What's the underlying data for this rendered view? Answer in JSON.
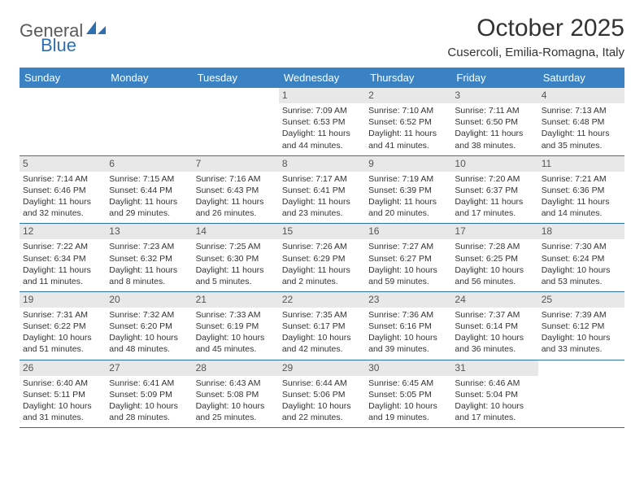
{
  "brand": {
    "text1": "General",
    "text2": "Blue"
  },
  "title": "October 2025",
  "location": "Cusercoli, Emilia-Romagna, Italy",
  "colors": {
    "header_bg": "#3a82c4",
    "header_text": "#ffffff",
    "row_border": "#2f6fb0",
    "daynum_bg": "#e8e8e8",
    "text": "#333333",
    "brand_grey": "#5a5a5a",
    "brand_blue": "#2f6fb0"
  },
  "day_headers": [
    "Sunday",
    "Monday",
    "Tuesday",
    "Wednesday",
    "Thursday",
    "Friday",
    "Saturday"
  ],
  "weeks": [
    [
      null,
      null,
      null,
      {
        "n": "1",
        "sr": "Sunrise: 7:09 AM",
        "ss": "Sunset: 6:53 PM",
        "d1": "Daylight: 11 hours",
        "d2": "and 44 minutes."
      },
      {
        "n": "2",
        "sr": "Sunrise: 7:10 AM",
        "ss": "Sunset: 6:52 PM",
        "d1": "Daylight: 11 hours",
        "d2": "and 41 minutes."
      },
      {
        "n": "3",
        "sr": "Sunrise: 7:11 AM",
        "ss": "Sunset: 6:50 PM",
        "d1": "Daylight: 11 hours",
        "d2": "and 38 minutes."
      },
      {
        "n": "4",
        "sr": "Sunrise: 7:13 AM",
        "ss": "Sunset: 6:48 PM",
        "d1": "Daylight: 11 hours",
        "d2": "and 35 minutes."
      }
    ],
    [
      {
        "n": "5",
        "sr": "Sunrise: 7:14 AM",
        "ss": "Sunset: 6:46 PM",
        "d1": "Daylight: 11 hours",
        "d2": "and 32 minutes."
      },
      {
        "n": "6",
        "sr": "Sunrise: 7:15 AM",
        "ss": "Sunset: 6:44 PM",
        "d1": "Daylight: 11 hours",
        "d2": "and 29 minutes."
      },
      {
        "n": "7",
        "sr": "Sunrise: 7:16 AM",
        "ss": "Sunset: 6:43 PM",
        "d1": "Daylight: 11 hours",
        "d2": "and 26 minutes."
      },
      {
        "n": "8",
        "sr": "Sunrise: 7:17 AM",
        "ss": "Sunset: 6:41 PM",
        "d1": "Daylight: 11 hours",
        "d2": "and 23 minutes."
      },
      {
        "n": "9",
        "sr": "Sunrise: 7:19 AM",
        "ss": "Sunset: 6:39 PM",
        "d1": "Daylight: 11 hours",
        "d2": "and 20 minutes."
      },
      {
        "n": "10",
        "sr": "Sunrise: 7:20 AM",
        "ss": "Sunset: 6:37 PM",
        "d1": "Daylight: 11 hours",
        "d2": "and 17 minutes."
      },
      {
        "n": "11",
        "sr": "Sunrise: 7:21 AM",
        "ss": "Sunset: 6:36 PM",
        "d1": "Daylight: 11 hours",
        "d2": "and 14 minutes."
      }
    ],
    [
      {
        "n": "12",
        "sr": "Sunrise: 7:22 AM",
        "ss": "Sunset: 6:34 PM",
        "d1": "Daylight: 11 hours",
        "d2": "and 11 minutes."
      },
      {
        "n": "13",
        "sr": "Sunrise: 7:23 AM",
        "ss": "Sunset: 6:32 PM",
        "d1": "Daylight: 11 hours",
        "d2": "and 8 minutes."
      },
      {
        "n": "14",
        "sr": "Sunrise: 7:25 AM",
        "ss": "Sunset: 6:30 PM",
        "d1": "Daylight: 11 hours",
        "d2": "and 5 minutes."
      },
      {
        "n": "15",
        "sr": "Sunrise: 7:26 AM",
        "ss": "Sunset: 6:29 PM",
        "d1": "Daylight: 11 hours",
        "d2": "and 2 minutes."
      },
      {
        "n": "16",
        "sr": "Sunrise: 7:27 AM",
        "ss": "Sunset: 6:27 PM",
        "d1": "Daylight: 10 hours",
        "d2": "and 59 minutes."
      },
      {
        "n": "17",
        "sr": "Sunrise: 7:28 AM",
        "ss": "Sunset: 6:25 PM",
        "d1": "Daylight: 10 hours",
        "d2": "and 56 minutes."
      },
      {
        "n": "18",
        "sr": "Sunrise: 7:30 AM",
        "ss": "Sunset: 6:24 PM",
        "d1": "Daylight: 10 hours",
        "d2": "and 53 minutes."
      }
    ],
    [
      {
        "n": "19",
        "sr": "Sunrise: 7:31 AM",
        "ss": "Sunset: 6:22 PM",
        "d1": "Daylight: 10 hours",
        "d2": "and 51 minutes."
      },
      {
        "n": "20",
        "sr": "Sunrise: 7:32 AM",
        "ss": "Sunset: 6:20 PM",
        "d1": "Daylight: 10 hours",
        "d2": "and 48 minutes."
      },
      {
        "n": "21",
        "sr": "Sunrise: 7:33 AM",
        "ss": "Sunset: 6:19 PM",
        "d1": "Daylight: 10 hours",
        "d2": "and 45 minutes."
      },
      {
        "n": "22",
        "sr": "Sunrise: 7:35 AM",
        "ss": "Sunset: 6:17 PM",
        "d1": "Daylight: 10 hours",
        "d2": "and 42 minutes."
      },
      {
        "n": "23",
        "sr": "Sunrise: 7:36 AM",
        "ss": "Sunset: 6:16 PM",
        "d1": "Daylight: 10 hours",
        "d2": "and 39 minutes."
      },
      {
        "n": "24",
        "sr": "Sunrise: 7:37 AM",
        "ss": "Sunset: 6:14 PM",
        "d1": "Daylight: 10 hours",
        "d2": "and 36 minutes."
      },
      {
        "n": "25",
        "sr": "Sunrise: 7:39 AM",
        "ss": "Sunset: 6:12 PM",
        "d1": "Daylight: 10 hours",
        "d2": "and 33 minutes."
      }
    ],
    [
      {
        "n": "26",
        "sr": "Sunrise: 6:40 AM",
        "ss": "Sunset: 5:11 PM",
        "d1": "Daylight: 10 hours",
        "d2": "and 31 minutes."
      },
      {
        "n": "27",
        "sr": "Sunrise: 6:41 AM",
        "ss": "Sunset: 5:09 PM",
        "d1": "Daylight: 10 hours",
        "d2": "and 28 minutes."
      },
      {
        "n": "28",
        "sr": "Sunrise: 6:43 AM",
        "ss": "Sunset: 5:08 PM",
        "d1": "Daylight: 10 hours",
        "d2": "and 25 minutes."
      },
      {
        "n": "29",
        "sr": "Sunrise: 6:44 AM",
        "ss": "Sunset: 5:06 PM",
        "d1": "Daylight: 10 hours",
        "d2": "and 22 minutes."
      },
      {
        "n": "30",
        "sr": "Sunrise: 6:45 AM",
        "ss": "Sunset: 5:05 PM",
        "d1": "Daylight: 10 hours",
        "d2": "and 19 minutes."
      },
      {
        "n": "31",
        "sr": "Sunrise: 6:46 AM",
        "ss": "Sunset: 5:04 PM",
        "d1": "Daylight: 10 hours",
        "d2": "and 17 minutes."
      },
      null
    ]
  ]
}
